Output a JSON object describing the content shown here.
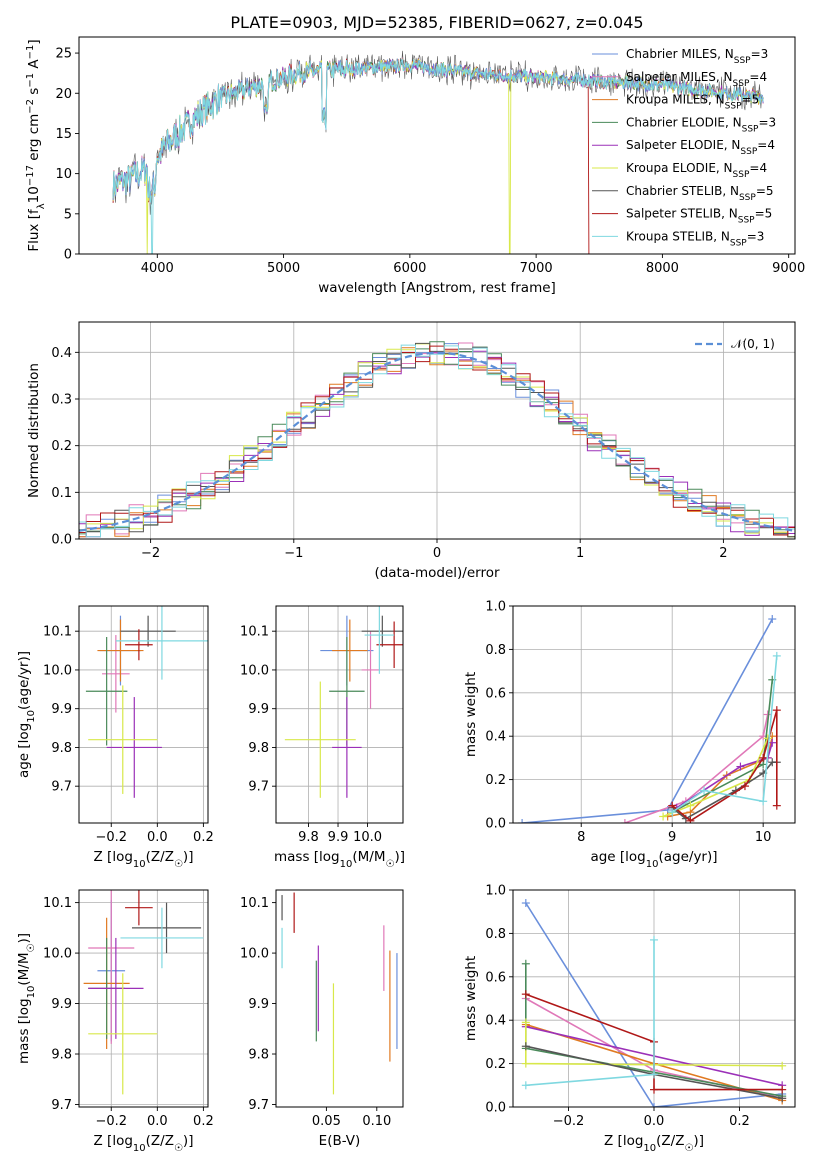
{
  "figure": {
    "title": "PLATE=0903, MJD=52385, FIBERID=0627, z=0.045"
  },
  "series": [
    {
      "id": "chab_miles",
      "name": "Chabrier MILES, N$_{SSP}$=3",
      "label_main": "Chabrier MILES, N",
      "label_sub": "SSP",
      "label_tail": "=3",
      "color": "#6a8fdb"
    },
    {
      "id": "salp_miles",
      "name": "Salpeter MILES, N$_{SSP}$=4",
      "label_main": "Salpeter MILES, N",
      "label_sub": "SSP",
      "label_tail": "=4",
      "color": "#e078b8"
    },
    {
      "id": "krou_miles",
      "name": "Kroupa MILES, N$_{SSP}$=5",
      "label_main": "Kroupa MILES, N",
      "label_sub": "SSP",
      "label_tail": "=5",
      "color": "#e07a22"
    },
    {
      "id": "chab_elodie",
      "name": "Chabrier ELODIE, N$_{SSP}$=3",
      "label_main": "Chabrier ELODIE, N",
      "label_sub": "SSP",
      "label_tail": "=3",
      "color": "#4a8a5a"
    },
    {
      "id": "salp_elodie",
      "name": "Salpeter ELODIE, N$_{SSP}$=4",
      "label_main": "Salpeter ELODIE, N",
      "label_sub": "SSP",
      "label_tail": "=4",
      "color": "#9b30b8"
    },
    {
      "id": "krou_elodie",
      "name": "Kroupa ELODIE, N$_{SSP}$=4",
      "label_main": "Kroupa ELODIE, N",
      "label_sub": "SSP",
      "label_tail": "=4",
      "color": "#d8e84a"
    },
    {
      "id": "chab_stelib",
      "name": "Chabrier STELIB, N$_{SSP}$=5",
      "label_main": "Chabrier STELIB, N",
      "label_sub": "SSP",
      "label_tail": "=5",
      "color": "#555555"
    },
    {
      "id": "salp_stelib",
      "name": "Salpeter STELIB, N$_{SSP}$=5",
      "label_main": "Salpeter STELIB, N",
      "label_sub": "SSP",
      "label_tail": "=5",
      "color": "#b01818"
    },
    {
      "id": "krou_stelib",
      "name": "Kroupa STELIB, N$_{SSP}$=3",
      "label_main": "Kroupa STELIB, N",
      "label_sub": "SSP",
      "label_tail": "=3",
      "color": "#7fd8e0"
    }
  ],
  "chart_data": [
    {
      "id": "spectrum",
      "type": "line",
      "title": "PLATE=0903, MJD=52385, FIBERID=0627, z=0.045",
      "xlabel": "wavelength [Angstrom, rest frame]",
      "ylabel_main": "Flux [f",
      "ylabel_sub": "λ",
      "ylabel_rest": "10",
      "ylabel_sup1": "−17",
      "ylabel_rest2": " erg cm",
      "ylabel_sup2": "−2",
      "ylabel_rest3": " s",
      "ylabel_sup3": "−1",
      "ylabel_rest4": " A",
      "ylabel_sup4": "−1",
      "ylabel_end": "]",
      "xlim": [
        3380,
        9050
      ],
      "ylim": [
        0,
        27
      ],
      "xticks": [
        4000,
        5000,
        6000,
        7000,
        8000,
        9000
      ],
      "yticks": [
        0,
        5,
        10,
        15,
        20,
        25
      ],
      "grid": false,
      "legend": "upper right",
      "continuum": {
        "x": [
          3650,
          3800,
          3950,
          4100,
          4300,
          4500,
          4800,
          5100,
          5500,
          6000,
          6500,
          7000,
          7500,
          8000,
          8500,
          8800
        ],
        "y": [
          8.5,
          9.5,
          11.0,
          14.0,
          17.0,
          19.5,
          21.0,
          22.5,
          23.0,
          23.5,
          22.5,
          22.0,
          21.5,
          21.0,
          20.0,
          19.5
        ]
      },
      "dropouts": [
        {
          "series": "krou_elodie",
          "x": 3920
        },
        {
          "series": "krou_elodie",
          "x": 6790
        },
        {
          "series": "salp_stelib",
          "x": 7420
        },
        {
          "series": "krou_stelib",
          "x": 3960
        }
      ]
    },
    {
      "id": "residuals",
      "type": "histogram",
      "xlabel": "(data-model)/error",
      "ylabel": "Normed distribution",
      "xlim": [
        -2.5,
        2.5
      ],
      "ylim": [
        0,
        0.465
      ],
      "xticks": [
        -2,
        -1,
        0,
        1,
        2
      ],
      "yticks": [
        0.0,
        0.1,
        0.2,
        0.3,
        0.4
      ],
      "grid": true,
      "legend": "upper right",
      "reference_label": "𝒩(0, 1)",
      "reference_color": "#5b8fd6",
      "bin_width": 0.1
    },
    {
      "id": "age_vs_Z",
      "type": "errorbar",
      "xlabel": "Z [log$_{10}$(Z/Z$_\\odot$)]",
      "ylabel": "age [log$_{10}$(age/yr)]",
      "xlim": [
        -0.34,
        0.22
      ],
      "ylim": [
        9.605,
        10.165
      ],
      "xticks": [
        -0.2,
        0.0,
        0.2
      ],
      "yticks": [
        9.7,
        9.8,
        9.9,
        10.0,
        10.1
      ],
      "grid": true,
      "points": [
        {
          "series": "chab_miles",
          "x": -0.16,
          "y": 10.05,
          "xerr": 0.09,
          "yerr": 0.09
        },
        {
          "series": "salp_miles",
          "x": -0.18,
          "y": 9.99,
          "xerr": 0.06,
          "yerr": 0.1
        },
        {
          "series": "krou_miles",
          "x": -0.16,
          "y": 10.05,
          "xerr": 0.1,
          "yerr": 0.08
        },
        {
          "series": "chab_elodie",
          "x": -0.22,
          "y": 9.945,
          "xerr": 0.09,
          "yerr": 0.14
        },
        {
          "series": "salp_elodie",
          "x": -0.1,
          "y": 9.8,
          "xerr": 0.12,
          "yerr": 0.13
        },
        {
          "series": "krou_elodie",
          "x": -0.15,
          "y": 9.82,
          "xerr": 0.15,
          "yerr": 0.14
        },
        {
          "series": "chab_stelib",
          "x": -0.04,
          "y": 10.1,
          "xerr": 0.12,
          "yerr": 0.04
        },
        {
          "series": "salp_stelib",
          "x": -0.08,
          "y": 10.065,
          "xerr": 0.06,
          "yerr": 0.04
        },
        {
          "series": "krou_stelib",
          "x": 0.02,
          "y": 10.075,
          "xerr": 0.2,
          "yerr": 0.1
        }
      ]
    },
    {
      "id": "age_vs_mass",
      "type": "errorbar",
      "xlabel": "mass [log$_{10}$(M/M$_\\odot$)]",
      "ylabel": "",
      "xlim": [
        9.69,
        10.12
      ],
      "ylim": [
        9.605,
        10.165
      ],
      "xticks": [
        9.8,
        9.9,
        10.0
      ],
      "yticks": [
        9.7,
        9.8,
        9.9,
        10.0,
        10.1
      ],
      "grid": true,
      "points": [
        {
          "series": "chab_miles",
          "x": 9.93,
          "y": 10.05,
          "xerr": 0.09,
          "yerr": 0.09
        },
        {
          "series": "salp_miles",
          "x": 10.01,
          "y": 10.0,
          "xerr": 0.03,
          "yerr": 0.1
        },
        {
          "series": "krou_miles",
          "x": 9.94,
          "y": 10.05,
          "xerr": 0.06,
          "yerr": 0.08
        },
        {
          "series": "chab_elodie",
          "x": 9.93,
          "y": 9.945,
          "xerr": 0.06,
          "yerr": 0.14
        },
        {
          "series": "salp_elodie",
          "x": 9.93,
          "y": 9.8,
          "xerr": 0.05,
          "yerr": 0.13
        },
        {
          "series": "krou_elodie",
          "x": 9.84,
          "y": 9.82,
          "xerr": 0.12,
          "yerr": 0.15
        },
        {
          "series": "chab_stelib",
          "x": 10.05,
          "y": 10.1,
          "xerr": 0.07,
          "yerr": 0.04
        },
        {
          "series": "salp_stelib",
          "x": 10.09,
          "y": 10.065,
          "xerr": 0.06,
          "yerr": 0.06
        },
        {
          "series": "krou_stelib",
          "x": 10.04,
          "y": 10.09,
          "xerr": 0.05,
          "yerr": 0.1
        }
      ]
    },
    {
      "id": "massweight_vs_age",
      "type": "line",
      "xlabel": "age [log$_{10}$(age/yr)]",
      "ylabel": "mass weight",
      "xlim": [
        7.25,
        10.35
      ],
      "ylim": [
        0,
        1.0
      ],
      "xticks": [
        8,
        9,
        10
      ],
      "yticks": [
        0.0,
        0.2,
        0.4,
        0.6,
        0.8,
        1.0
      ],
      "grid": true,
      "series": [
        {
          "series": "chab_miles",
          "x": [
            7.35,
            8.95,
            10.1
          ],
          "y": [
            0.0,
            0.06,
            0.94
          ]
        },
        {
          "series": "salp_miles",
          "x": [
            8.48,
            9.15,
            10.0,
            10.05
          ],
          "y": [
            0.0,
            0.1,
            0.4,
            0.5
          ]
        },
        {
          "series": "krou_miles",
          "x": [
            8.95,
            9.2,
            9.6,
            10.05,
            10.1
          ],
          "y": [
            0.03,
            0.05,
            0.22,
            0.3,
            0.4
          ]
        },
        {
          "series": "chab_elodie",
          "x": [
            9.0,
            10.0,
            10.1
          ],
          "y": [
            0.05,
            0.27,
            0.66
          ]
        },
        {
          "series": "salp_elodie",
          "x": [
            9.05,
            9.75,
            10.05,
            10.1
          ],
          "y": [
            0.07,
            0.26,
            0.3,
            0.37
          ]
        },
        {
          "series": "krou_elodie",
          "x": [
            8.9,
            9.2,
            9.85,
            10.05
          ],
          "y": [
            0.03,
            0.08,
            0.2,
            0.39
          ]
        },
        {
          "series": "chab_stelib",
          "x": [
            9.0,
            9.15,
            9.7,
            10.0,
            10.1,
            10.15
          ],
          "y": [
            0.07,
            0.02,
            0.15,
            0.23,
            0.28,
            0.28
          ]
        },
        {
          "series": "salp_stelib",
          "x": [
            9.0,
            9.2,
            9.8,
            10.0,
            10.15,
            10.15
          ],
          "y": [
            0.08,
            0.01,
            0.17,
            0.3,
            0.52,
            0.08
          ]
        },
        {
          "series": "krou_stelib",
          "x": [
            9.0,
            9.35,
            10.0,
            10.15
          ],
          "y": [
            0.05,
            0.15,
            0.1,
            0.77
          ]
        }
      ]
    },
    {
      "id": "mass_vs_Z",
      "type": "errorbar",
      "xlabel": "Z [log$_{10}$(Z/Z$_\\odot$)]",
      "ylabel": "mass [log$_{10}$(M/M$_\\odot$)]",
      "xlim": [
        -0.34,
        0.22
      ],
      "ylim": [
        9.695,
        10.125
      ],
      "xticks": [
        -0.2,
        0.0,
        0.2
      ],
      "yticks": [
        9.7,
        9.8,
        9.9,
        10.0,
        10.1
      ],
      "grid": true,
      "points": [
        {
          "series": "chab_miles",
          "x": -0.2,
          "y": 9.965,
          "xerr": 0.06,
          "yerr": 0.14
        },
        {
          "series": "salp_miles",
          "x": -0.2,
          "y": 10.01,
          "xerr": 0.1,
          "yerr": 0.19
        },
        {
          "series": "krou_miles",
          "x": -0.22,
          "y": 9.94,
          "xerr": 0.1,
          "yerr": 0.13
        },
        {
          "series": "chab_elodie",
          "x": -0.22,
          "y": 9.93,
          "xerr": 0.08,
          "yerr": 0.1
        },
        {
          "series": "salp_elodie",
          "x": -0.18,
          "y": 9.93,
          "xerr": 0.12,
          "yerr": 0.1
        },
        {
          "series": "krou_elodie",
          "x": -0.15,
          "y": 9.84,
          "xerr": 0.15,
          "yerr": 0.12
        },
        {
          "series": "chab_stelib",
          "x": 0.04,
          "y": 10.05,
          "xerr": 0.15,
          "yerr": 0.05
        },
        {
          "series": "salp_stelib",
          "x": -0.08,
          "y": 10.09,
          "xerr": 0.06,
          "yerr": 0.035
        },
        {
          "series": "krou_stelib",
          "x": 0.02,
          "y": 10.03,
          "xerr": 0.18,
          "yerr": 0.06
        }
      ]
    },
    {
      "id": "mass_vs_ebv",
      "type": "errorbar",
      "xlabel": "E(B-V)",
      "ylabel": "",
      "xlim": [
        0.0,
        0.126
      ],
      "ylim": [
        9.695,
        10.125
      ],
      "xticks": [
        0.05,
        0.1
      ],
      "yticks": [
        9.7,
        9.8,
        9.9,
        10.0,
        10.1
      ],
      "grid": false,
      "points": [
        {
          "series": "chab_miles",
          "x": 0.12,
          "y": 9.905,
          "yerr": 0.095
        },
        {
          "series": "salp_miles",
          "x": 0.107,
          "y": 9.99,
          "yerr": 0.065
        },
        {
          "series": "krou_miles",
          "x": 0.113,
          "y": 9.895,
          "yerr": 0.11
        },
        {
          "series": "chab_elodie",
          "x": 0.04,
          "y": 9.905,
          "yerr": 0.08
        },
        {
          "series": "salp_elodie",
          "x": 0.042,
          "y": 9.93,
          "yerr": 0.085
        },
        {
          "series": "krou_elodie",
          "x": 0.057,
          "y": 9.83,
          "yerr": 0.11
        },
        {
          "series": "chab_stelib",
          "x": 0.006,
          "y": 10.09,
          "yerr": 0.025
        },
        {
          "series": "salp_stelib",
          "x": 0.018,
          "y": 10.08,
          "yerr": 0.04
        },
        {
          "series": "krou_stelib",
          "x": 0.006,
          "y": 10.01,
          "yerr": 0.04
        }
      ]
    },
    {
      "id": "massweight_vs_Z",
      "type": "line",
      "xlabel": "Z [log$_{10}$(Z/Z$_\\odot$)]",
      "ylabel": "mass weight",
      "xlim": [
        -0.33,
        0.33
      ],
      "ylim": [
        0,
        1.0
      ],
      "xticks": [
        -0.2,
        0.0,
        0.2
      ],
      "yticks": [
        0.0,
        0.2,
        0.4,
        0.6,
        0.8,
        1.0
      ],
      "grid": true,
      "series": [
        {
          "series": "chab_miles",
          "x": [
            -0.3,
            0.0,
            0.3
          ],
          "y": [
            0.94,
            0.0,
            0.06
          ]
        },
        {
          "series": "salp_miles",
          "x": [
            -0.3,
            0.0,
            0.3
          ],
          "y": [
            0.5,
            0.17,
            0.04
          ]
        },
        {
          "series": "krou_miles",
          "x": [
            -0.3,
            0.0,
            0.3
          ],
          "y": [
            0.38,
            0.2,
            0.03
          ]
        },
        {
          "series": "chab_elodie",
          "x": [
            -0.3,
            -0.3,
            0.3
          ],
          "y": [
            0.66,
            0.27,
            0.05
          ]
        },
        {
          "series": "salp_elodie",
          "x": [
            -0.3,
            0.3
          ],
          "y": [
            0.37,
            0.1
          ]
        },
        {
          "series": "krou_elodie",
          "x": [
            -0.3,
            -0.3,
            0.3
          ],
          "y": [
            0.39,
            0.2,
            0.19
          ]
        },
        {
          "series": "chab_stelib",
          "x": [
            -0.3,
            0.0,
            0.3
          ],
          "y": [
            0.28,
            0.15,
            0.04
          ]
        },
        {
          "series": "salp_stelib",
          "x": [
            -0.3,
            0.0,
            0.0,
            0.3
          ],
          "y": [
            0.52,
            0.3,
            0.08,
            0.08
          ]
        },
        {
          "series": "krou_stelib",
          "x": [
            -0.3,
            0.0,
            0.0
          ],
          "y": [
            0.1,
            0.15,
            0.77
          ]
        }
      ]
    }
  ]
}
